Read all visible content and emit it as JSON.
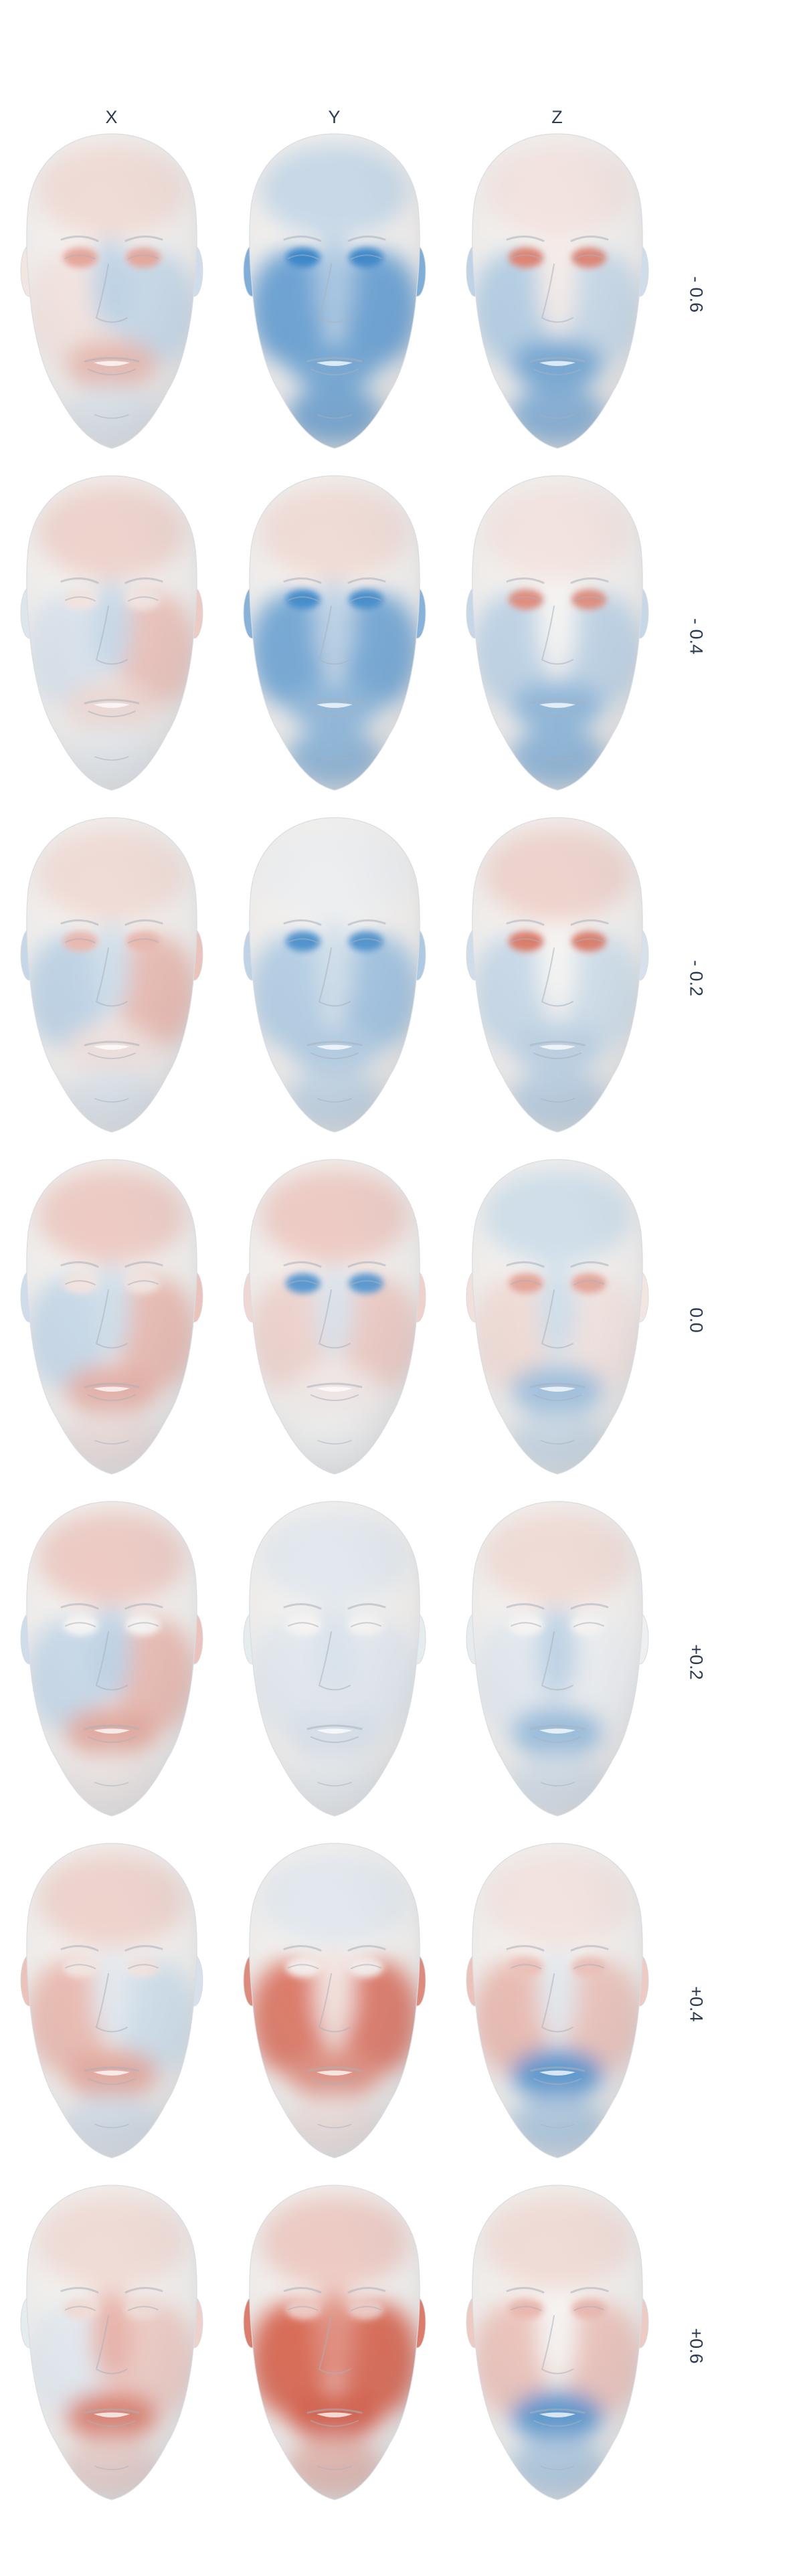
{
  "columns": [
    "X",
    "Y",
    "Z"
  ],
  "rows": [
    "- 0.6",
    "- 0.4",
    "- 0.2",
    "0.0",
    "+0.2",
    "+0.4",
    "+0.6"
  ],
  "colormap": {
    "negative": "#2f7fc6",
    "neutral": "#f6f4f2",
    "positive": "#d0452c",
    "base_skin": "#f4f1ee",
    "shadow": "#c9ccd3"
  },
  "text_color": "#2b3a55",
  "faces": [
    {
      "row": "- 0.6",
      "column": "X",
      "forehead": 0.15,
      "left_cheek": 0.1,
      "right_cheek": -0.25,
      "nose": -0.3,
      "mouth": 0.35,
      "chin": -0.1,
      "eyes": 0.45
    },
    {
      "row": "- 0.6",
      "column": "Y",
      "forehead": -0.25,
      "left_cheek": -0.75,
      "right_cheek": -0.75,
      "nose": -0.4,
      "mouth": -0.7,
      "chin": -0.7,
      "eyes": -0.95
    },
    {
      "row": "- 0.6",
      "column": "Z",
      "forehead": 0.1,
      "left_cheek": -0.35,
      "right_cheek": -0.25,
      "nose": 0.05,
      "mouth": -0.7,
      "chin": -0.6,
      "eyes": 0.65
    },
    {
      "row": "- 0.4",
      "column": "X",
      "forehead": 0.2,
      "left_cheek": -0.15,
      "right_cheek": 0.3,
      "nose": -0.25,
      "mouth": 0.15,
      "chin": -0.05,
      "eyes": 0.1
    },
    {
      "row": "- 0.4",
      "column": "Y",
      "forehead": 0.15,
      "left_cheek": -0.7,
      "right_cheek": -0.7,
      "nose": -0.3,
      "mouth": -0.55,
      "chin": -0.55,
      "eyes": -0.9
    },
    {
      "row": "- 0.4",
      "column": "Z",
      "forehead": 0.1,
      "left_cheek": -0.3,
      "right_cheek": -0.3,
      "nose": 0.0,
      "mouth": -0.55,
      "chin": -0.55,
      "eyes": 0.6
    },
    {
      "row": "- 0.2",
      "column": "X",
      "forehead": 0.15,
      "left_cheek": -0.3,
      "right_cheek": 0.35,
      "nose": -0.2,
      "mouth": 0.1,
      "chin": -0.1,
      "eyes": 0.35
    },
    {
      "row": "- 0.2",
      "column": "Y",
      "forehead": -0.05,
      "left_cheek": -0.35,
      "right_cheek": -0.45,
      "nose": -0.2,
      "mouth": -0.35,
      "chin": -0.25,
      "eyes": -0.85
    },
    {
      "row": "- 0.2",
      "column": "Z",
      "forehead": 0.2,
      "left_cheek": -0.25,
      "right_cheek": -0.2,
      "nose": 0.0,
      "mouth": -0.3,
      "chin": -0.3,
      "eyes": 0.7
    },
    {
      "row": "0.0",
      "column": "X",
      "forehead": 0.25,
      "left_cheek": -0.25,
      "right_cheek": 0.35,
      "nose": -0.2,
      "mouth": 0.4,
      "chin": 0.1,
      "eyes": 0.1
    },
    {
      "row": "0.0",
      "column": "Y",
      "forehead": 0.25,
      "left_cheek": 0.2,
      "right_cheek": 0.25,
      "nose": -0.15,
      "mouth": 0.05,
      "chin": 0.0,
      "eyes": -0.8
    },
    {
      "row": "0.0",
      "column": "Z",
      "forehead": -0.2,
      "left_cheek": 0.15,
      "right_cheek": 0.1,
      "nose": -0.2,
      "mouth": -0.45,
      "chin": -0.2,
      "eyes": 0.45
    },
    {
      "row": "+0.2",
      "column": "X",
      "forehead": 0.25,
      "left_cheek": -0.25,
      "right_cheek": 0.35,
      "nose": -0.3,
      "mouth": 0.45,
      "chin": 0.05,
      "eyes": 0.0
    },
    {
      "row": "+0.2",
      "column": "Y",
      "forehead": -0.1,
      "left_cheek": -0.1,
      "right_cheek": -0.1,
      "nose": -0.15,
      "mouth": -0.15,
      "chin": -0.05,
      "eyes": 0.0
    },
    {
      "row": "+0.2",
      "column": "Z",
      "forehead": 0.15,
      "left_cheek": -0.1,
      "right_cheek": -0.05,
      "nose": -0.3,
      "mouth": -0.5,
      "chin": -0.15,
      "eyes": 0.0
    },
    {
      "row": "+0.4",
      "column": "X",
      "forehead": 0.2,
      "left_cheek": 0.35,
      "right_cheek": -0.2,
      "nose": -0.1,
      "mouth": 0.45,
      "chin": -0.15,
      "eyes": 0.1
    },
    {
      "row": "+0.4",
      "column": "Y",
      "forehead": -0.1,
      "left_cheek": 0.75,
      "right_cheek": 0.75,
      "nose": 0.1,
      "mouth": 0.6,
      "chin": 0.1,
      "eyes": 0.05
    },
    {
      "row": "+0.4",
      "column": "Z",
      "forehead": 0.1,
      "left_cheek": 0.35,
      "right_cheek": 0.3,
      "nose": -0.1,
      "mouth": -0.85,
      "chin": -0.35,
      "eyes": 0.3
    },
    {
      "row": "+0.6",
      "column": "X",
      "forehead": 0.15,
      "left_cheek": -0.1,
      "right_cheek": 0.25,
      "nose": 0.4,
      "mouth": 0.7,
      "chin": 0.2,
      "eyes": 0.15
    },
    {
      "row": "+0.6",
      "column": "Y",
      "forehead": 0.25,
      "left_cheek": 0.85,
      "right_cheek": 0.85,
      "nose": 0.6,
      "mouth": 0.9,
      "chin": 0.35,
      "eyes": 0.25
    },
    {
      "row": "+0.6",
      "column": "Z",
      "forehead": 0.15,
      "left_cheek": 0.3,
      "right_cheek": 0.3,
      "nose": 0.0,
      "mouth": -0.85,
      "chin": -0.35,
      "eyes": 0.35
    }
  ]
}
